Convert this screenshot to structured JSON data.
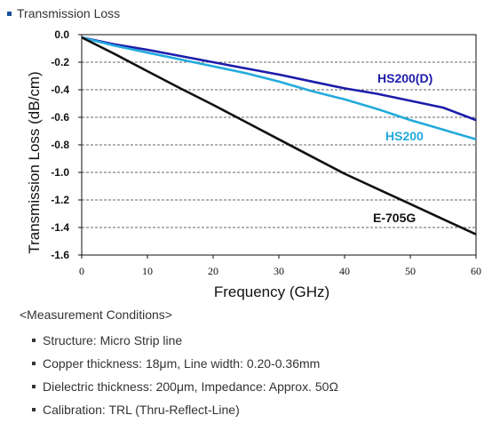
{
  "header": {
    "title": "Transmission Loss"
  },
  "chart_data": {
    "type": "line",
    "xlabel": "Frequency (GHz)",
    "ylabel": "Transmission Loss (dB/cm)",
    "xlim": [
      0,
      60
    ],
    "ylim": [
      -1.6,
      0.0
    ],
    "xticks": [
      "0",
      "10",
      "20",
      "30",
      "40",
      "50",
      "60"
    ],
    "yticks": [
      "0.0",
      "-0.2",
      "-0.4",
      "-0.6",
      "-0.8",
      "-1.0",
      "-1.2",
      "-1.4",
      "-1.6"
    ],
    "grid": "horizontal dashed",
    "series": [
      {
        "name": "HS200(D)",
        "color": "#1c1caa",
        "x": [
          0,
          5,
          10,
          15,
          20,
          25,
          30,
          35,
          40,
          45,
          50,
          55,
          60
        ],
        "y": [
          -0.02,
          -0.07,
          -0.11,
          -0.155,
          -0.2,
          -0.245,
          -0.29,
          -0.34,
          -0.39,
          -0.43,
          -0.48,
          -0.53,
          -0.62
        ]
      },
      {
        "name": "HS200",
        "color": "#22aadd",
        "x": [
          0,
          5,
          10,
          15,
          20,
          25,
          30,
          35,
          40,
          45,
          50,
          55,
          60
        ],
        "y": [
          -0.02,
          -0.08,
          -0.13,
          -0.18,
          -0.23,
          -0.28,
          -0.34,
          -0.41,
          -0.47,
          -0.54,
          -0.62,
          -0.69,
          -0.76
        ]
      },
      {
        "name": "E-705G",
        "color": "#111111",
        "x": [
          0,
          5,
          10,
          15,
          20,
          25,
          30,
          35,
          40,
          45,
          50,
          55,
          60
        ],
        "y": [
          -0.02,
          -0.14,
          -0.265,
          -0.39,
          -0.51,
          -0.635,
          -0.76,
          -0.885,
          -1.01,
          -1.12,
          -1.23,
          -1.34,
          -1.45
        ]
      }
    ]
  },
  "conditions": {
    "title": "<Measurement Conditions>",
    "items": [
      "Structure: Micro Strip line",
      "Copper thickness: 18μm, Line width: 0.20-0.36mm",
      "Dielectric thickness: 200μm, Impedance: Approx. 50Ω",
      "Calibration: TRL (Thru-Reflect-Line)"
    ]
  }
}
